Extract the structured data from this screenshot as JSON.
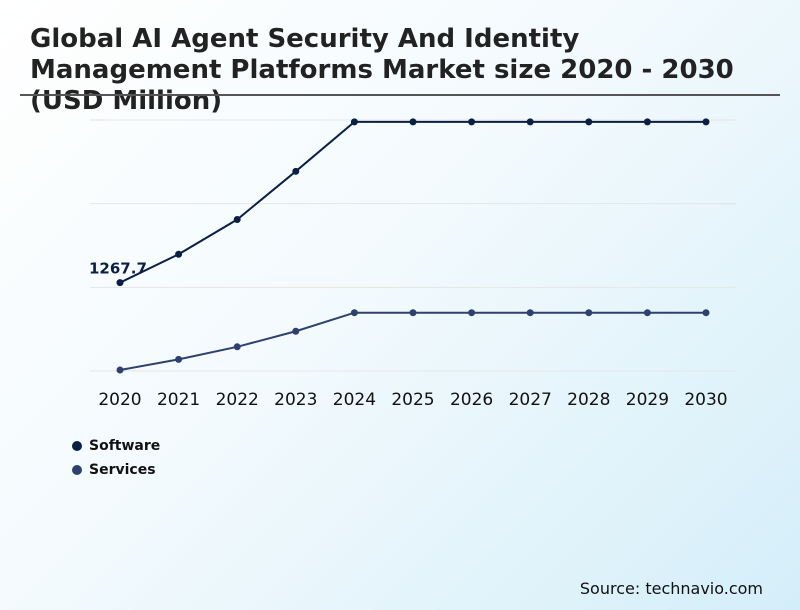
{
  "title": "Global AI Agent Security And Identity Management Platforms Market size 2020 - 2030 (USD Million)",
  "source": "Source: technavio.com",
  "chart_data": {
    "type": "line",
    "title": "Global AI Agent Security And Identity Management Platforms Market size 2020 - 2030 (USD Million)",
    "xlabel": "",
    "ylabel": "",
    "categories": [
      "2020",
      "2021",
      "2022",
      "2023",
      "2024",
      "2025",
      "2026",
      "2027",
      "2028",
      "2029",
      "2030"
    ],
    "ylim": [
      0,
      3600
    ],
    "grid": true,
    "legend_position": "bottom-left",
    "annotations": [
      {
        "series": "Software",
        "category": "2020",
        "text": "1267.7"
      }
    ],
    "series": [
      {
        "name": "Software",
        "color": "#0b1f44",
        "values": [
          1267.7,
          1674,
          2173,
          2864,
          3573,
          3573,
          3573,
          3573,
          3573,
          3573,
          3573
        ]
      },
      {
        "name": "Services",
        "color": "#2e416e",
        "values": [
          14,
          167,
          347,
          570,
          836,
          836,
          836,
          836,
          836,
          836,
          836
        ]
      }
    ]
  }
}
